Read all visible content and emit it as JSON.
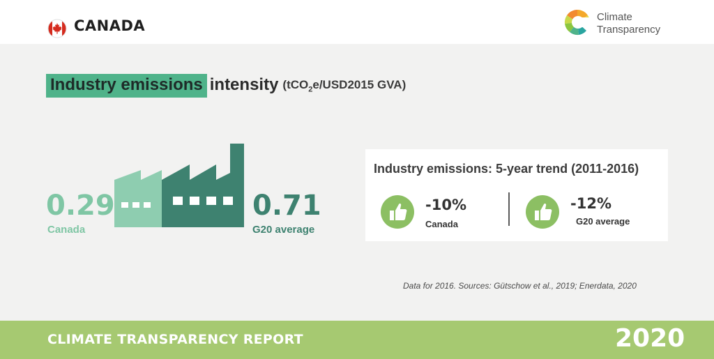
{
  "header": {
    "country": "CANADA",
    "logo_line1": "Climate",
    "logo_line2": "Transparency",
    "flag_icon": "maple-leaf-icon"
  },
  "title": {
    "highlight": "Industry emissions",
    "rest": "intensity",
    "unit_prefix": "(tCO",
    "unit_sub": "2",
    "unit_suffix": "e/USD2015 GVA)"
  },
  "comparison": {
    "left_value": "0.29",
    "left_label": "Canada",
    "right_value": "0.71",
    "right_label": "G20 average"
  },
  "trend": {
    "title": "Industry emissions: 5-year trend (2011-2016)",
    "items": [
      {
        "value": "-10%",
        "label": "Canada",
        "icon": "thumbs-up-icon"
      },
      {
        "value": "-12%",
        "label": "G20 average",
        "icon": "thumbs-up-icon"
      }
    ]
  },
  "source": "Data for 2016. Sources: Gütschow et al., 2019; Enerdata, 2020",
  "footer": {
    "left": "CLIMATE TRANSPARENCY REPORT",
    "right": "2020"
  },
  "colors": {
    "highlight_green": "#4fb38a",
    "light_green": "#7fc6a4",
    "dark_green": "#3e8270",
    "thumb_green": "#8cbf63",
    "footer_green": "#a6c971"
  }
}
